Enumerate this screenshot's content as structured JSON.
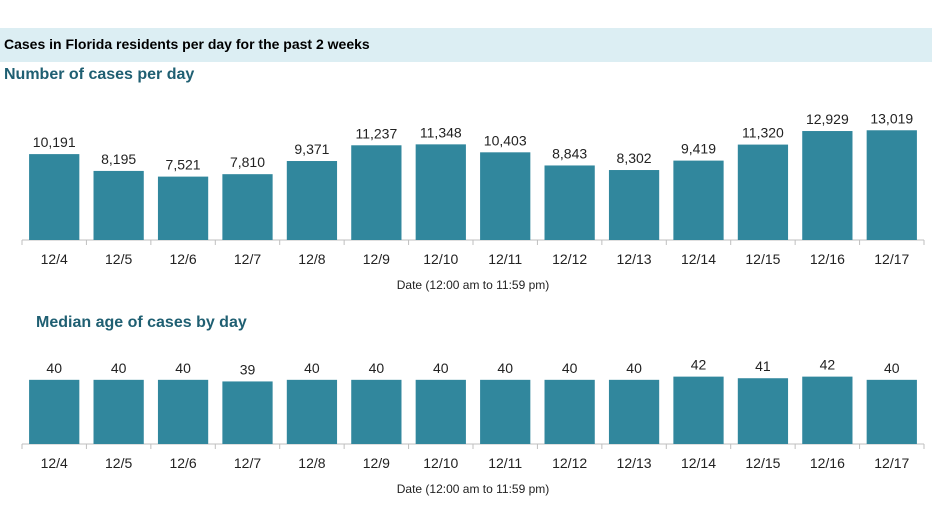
{
  "header": {
    "title": "Cases in Florida residents per day for the past 2 weeks"
  },
  "colors": {
    "bar": "#31879d",
    "banner": "#dceef3",
    "subtitle": "#1f5f72"
  },
  "chart_data": [
    {
      "type": "bar",
      "title": "Number of cases per day",
      "xlabel": "Date (12:00 am to 11:59 pm)",
      "ylabel": "",
      "ylim": [
        0,
        14000
      ],
      "categories": [
        "12/4",
        "12/5",
        "12/6",
        "12/7",
        "12/8",
        "12/9",
        "12/10",
        "12/11",
        "12/12",
        "12/13",
        "12/14",
        "12/15",
        "12/16",
        "12/17"
      ],
      "values": [
        10191,
        8195,
        7521,
        7810,
        9371,
        11237,
        11348,
        10403,
        8843,
        8302,
        9419,
        11320,
        12929,
        13019
      ],
      "labels": [
        "10,191",
        "8,195",
        "7,521",
        "7,810",
        "9,371",
        "11,237",
        "11,348",
        "10,403",
        "8,843",
        "8,302",
        "9,419",
        "11,320",
        "12,929",
        "13,019"
      ]
    },
    {
      "type": "bar",
      "title": "Median age of cases by day",
      "xlabel": "Date (12:00 am to 11:59 pm)",
      "ylabel": "",
      "ylim": [
        0,
        48
      ],
      "categories": [
        "12/4",
        "12/5",
        "12/6",
        "12/7",
        "12/8",
        "12/9",
        "12/10",
        "12/11",
        "12/12",
        "12/13",
        "12/14",
        "12/15",
        "12/16",
        "12/17"
      ],
      "values": [
        40,
        40,
        40,
        39,
        40,
        40,
        40,
        40,
        40,
        40,
        42,
        41,
        42,
        40
      ],
      "labels": [
        "40",
        "40",
        "40",
        "39",
        "40",
        "40",
        "40",
        "40",
        "40",
        "40",
        "42",
        "41",
        "42",
        "40"
      ]
    }
  ]
}
